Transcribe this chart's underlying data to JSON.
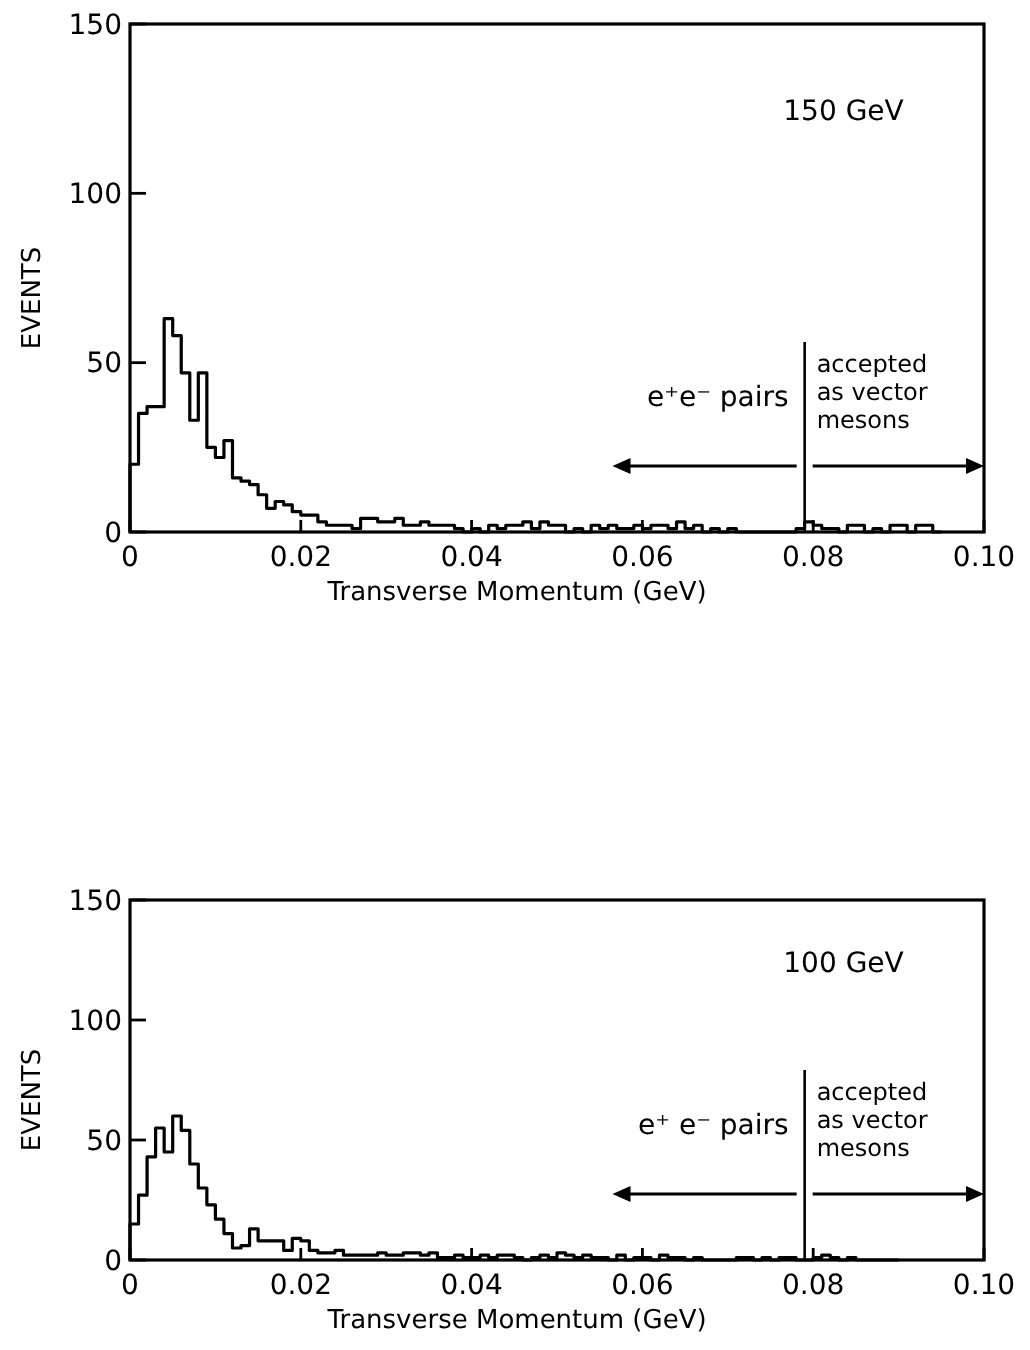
{
  "chart_data": [
    {
      "type": "histogram",
      "xlabel": "Transverse Momentum (GeV)",
      "ylabel": "EVENTS",
      "annotations": [
        "150 GeV",
        "e⁺e⁻ pairs",
        "accepted as vector mesons"
      ],
      "bins": [
        0,
        0.001,
        0.002,
        0.003,
        0.004,
        0.005,
        0.006,
        0.007,
        0.008,
        0.009,
        0.01,
        0.011,
        0.012,
        0.013,
        0.014,
        0.015,
        0.016,
        0.017,
        0.018,
        0.019,
        0.02,
        0.021,
        0.022,
        0.023,
        0.024,
        0.025,
        0.026,
        0.027,
        0.028,
        0.029,
        0.03,
        0.031,
        0.032,
        0.033,
        0.034,
        0.035,
        0.036,
        0.037,
        0.038,
        0.039,
        0.04,
        0.041,
        0.042,
        0.043,
        0.044,
        0.045,
        0.046,
        0.047,
        0.048,
        0.049,
        0.05,
        0.051,
        0.052,
        0.053,
        0.054,
        0.055,
        0.056,
        0.057,
        0.058,
        0.059,
        0.06,
        0.061,
        0.062,
        0.063,
        0.064,
        0.065,
        0.066,
        0.067,
        0.068,
        0.069,
        0.07,
        0.071,
        0.072,
        0.073,
        0.074,
        0.075,
        0.076,
        0.077,
        0.078,
        0.079,
        0.08,
        0.081,
        0.082,
        0.083,
        0.084,
        0.085,
        0.086,
        0.087,
        0.088,
        0.089,
        0.09,
        0.091,
        0.092,
        0.093,
        0.094,
        0.095
      ],
      "values": [
        20,
        35,
        37,
        37,
        63,
        58,
        47,
        33,
        47,
        25,
        22,
        27,
        16,
        15,
        14,
        11,
        7,
        9,
        8,
        6,
        5,
        5,
        3,
        2,
        2,
        2,
        1,
        4,
        4,
        3,
        3,
        4,
        2,
        2,
        3,
        2,
        2,
        2,
        1,
        0,
        1,
        0,
        2,
        1,
        2,
        2,
        3,
        1,
        3,
        2,
        2,
        0,
        1,
        0,
        2,
        1,
        2,
        1,
        1,
        2,
        1,
        2,
        2,
        1,
        3,
        1,
        2,
        0,
        1,
        0,
        1,
        0,
        0,
        0,
        0,
        0,
        0,
        0,
        1,
        3,
        2,
        1,
        1,
        0,
        2,
        2,
        0,
        1,
        0,
        2,
        2,
        0,
        2,
        2,
        0
      ],
      "color": "#000000",
      "xlim": [
        0,
        0.1
      ],
      "ylim": [
        0,
        150
      ],
      "xticks": [
        0,
        0.02,
        0.04,
        0.06,
        0.08,
        {
          "value": 0.1,
          "label": "0.10"
        }
      ],
      "yticks": [
        0,
        50,
        100,
        150
      ],
      "ref_lines": [
        {
          "axis": "x",
          "value": 0.079,
          "label": null
        }
      ],
      "grid": false
    },
    {
      "type": "histogram",
      "xlabel": "Transverse Momentum (GeV)",
      "ylabel": "EVENTS",
      "annotations": [
        "100 GeV",
        "e⁺ e⁻ pairs",
        "accepted as vector mesons"
      ],
      "bins": [
        0,
        0.001,
        0.002,
        0.003,
        0.004,
        0.005,
        0.006,
        0.007,
        0.008,
        0.009,
        0.01,
        0.011,
        0.012,
        0.013,
        0.014,
        0.015,
        0.016,
        0.017,
        0.018,
        0.019,
        0.02,
        0.021,
        0.022,
        0.023,
        0.024,
        0.025,
        0.026,
        0.027,
        0.028,
        0.029,
        0.03,
        0.031,
        0.032,
        0.033,
        0.034,
        0.035,
        0.036,
        0.037,
        0.038,
        0.039,
        0.04,
        0.041,
        0.042,
        0.043,
        0.044,
        0.045,
        0.046,
        0.047,
        0.048,
        0.049,
        0.05,
        0.051,
        0.052,
        0.053,
        0.054,
        0.055,
        0.056,
        0.057,
        0.058,
        0.059,
        0.06,
        0.061,
        0.062,
        0.063,
        0.064,
        0.065,
        0.066,
        0.067,
        0.068,
        0.069,
        0.07,
        0.071,
        0.072,
        0.073,
        0.074,
        0.075,
        0.076,
        0.077,
        0.078,
        0.079,
        0.08,
        0.081,
        0.082,
        0.083,
        0.084,
        0.085,
        0.086,
        0.087,
        0.088,
        0.089,
        0.09
      ],
      "values": [
        15,
        27,
        43,
        55,
        45,
        60,
        54,
        40,
        30,
        23,
        17,
        11,
        5,
        6,
        13,
        8,
        8,
        8,
        4,
        9,
        8,
        4,
        3,
        3,
        4,
        2,
        2,
        2,
        2,
        3,
        2,
        2,
        3,
        3,
        2,
        3,
        1,
        1,
        2,
        1,
        1,
        2,
        1,
        2,
        2,
        1,
        0,
        1,
        2,
        1,
        3,
        2,
        1,
        2,
        1,
        1,
        0,
        2,
        0,
        1,
        1,
        0,
        2,
        1,
        1,
        0,
        1,
        0,
        0,
        0,
        0,
        1,
        1,
        0,
        1,
        0,
        1,
        1,
        0,
        0,
        1,
        2,
        1,
        0,
        1,
        0,
        0,
        0,
        0,
        0
      ],
      "color": "#000000",
      "xlim": [
        0,
        0.1
      ],
      "ylim": [
        0,
        150
      ],
      "xticks": [
        0,
        0.02,
        0.04,
        0.06,
        0.08,
        {
          "value": 0.1,
          "label": "0.10"
        }
      ],
      "yticks": [
        0,
        50,
        100,
        150
      ],
      "ref_lines": [
        {
          "axis": "x",
          "value": 0.079,
          "label": null
        }
      ],
      "grid": false
    }
  ]
}
